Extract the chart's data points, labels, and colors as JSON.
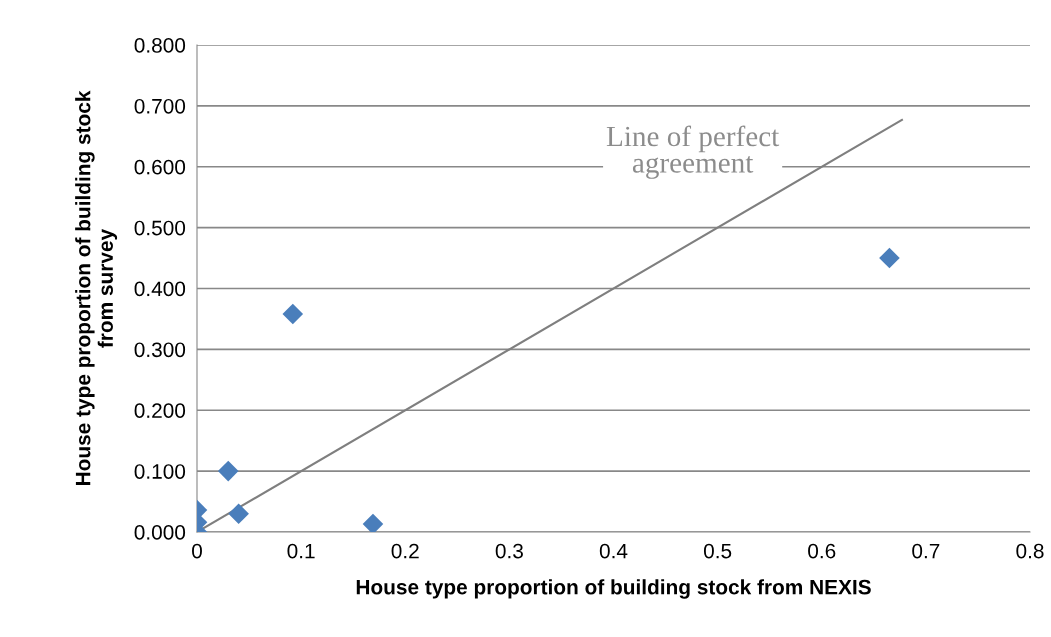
{
  "chart_data": {
    "type": "scatter",
    "xlabel": "House type proportion of building stock from NEXIS",
    "ylabel": "House type proportion of building stock\nfrom survey",
    "xlim": [
      0,
      0.8
    ],
    "xticks": [
      0,
      0.1,
      0.2,
      0.3,
      0.4,
      0.5,
      0.6,
      0.7,
      0.8
    ],
    "ylim": [
      0,
      0.8
    ],
    "yticks": [
      {
        "value": 0,
        "label": "0.000"
      },
      {
        "value": 0.1,
        "label": "0.100"
      },
      {
        "value": 0.2,
        "label": "0.200"
      },
      {
        "value": 0.3,
        "label": "0.300"
      },
      {
        "value": 0.4,
        "label": "0.400"
      },
      {
        "value": 0.5,
        "label": "0.500"
      },
      {
        "value": 0.6,
        "label": "0.600"
      },
      {
        "value": 0.7,
        "label": "0.700"
      },
      {
        "value": 0.8,
        "label": "0.800"
      }
    ],
    "grid": "y",
    "marker": "diamond",
    "series": [
      {
        "color": "#4a7ebb",
        "x": [
          0,
          0,
          0,
          0.03,
          0.04,
          0.092,
          0.169,
          0.665
        ],
        "values": [
          0.036,
          0.016,
          0,
          0.1,
          0.03,
          0.358,
          0.013,
          0.45
        ]
      },
      {
        "type": "line",
        "color": "#7f7f7f",
        "x": [
          0,
          0.677
        ],
        "values": [
          0,
          0.677
        ],
        "marker": "none"
      }
    ],
    "annotations": [
      "Line of perfect\nagreement"
    ]
  }
}
